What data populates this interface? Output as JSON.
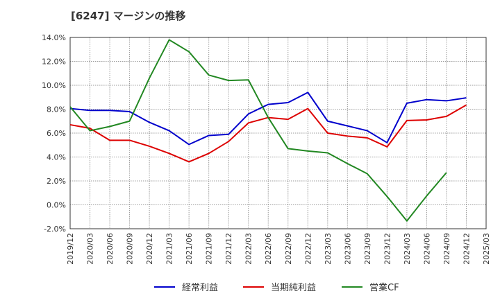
{
  "chart_data": {
    "type": "line",
    "title": "[6247]  マージンの推移",
    "x": [
      "2019/12",
      "2020/03",
      "2020/06",
      "2020/09",
      "2020/12",
      "2021/03",
      "2021/06",
      "2021/09",
      "2021/12",
      "2022/03",
      "2022/06",
      "2022/09",
      "2022/12",
      "2023/03",
      "2023/06",
      "2023/09",
      "2023/12",
      "2024/03",
      "2024/06",
      "2024/09",
      "2024/12",
      "2025/03"
    ],
    "xlabel": "",
    "ylabel": "",
    "ylim": [
      -2,
      14
    ],
    "yticks": [
      "14.0%",
      "12.0%",
      "10.0%",
      "8.0%",
      "6.0%",
      "4.0%",
      "2.0%",
      "0.0%",
      "-2.0%"
    ],
    "ytick_values": [
      14,
      12,
      10,
      8,
      6,
      4,
      2,
      0,
      -2
    ],
    "grid": true,
    "legend_position": "bottom",
    "series": [
      {
        "name": "経常利益",
        "color": "#0000cc",
        "values": [
          8.05,
          7.9,
          7.9,
          7.8,
          6.9,
          6.2,
          5.05,
          5.8,
          5.9,
          7.6,
          8.4,
          8.55,
          9.4,
          7.0,
          6.6,
          6.2,
          5.2,
          8.5,
          8.8,
          8.7,
          8.95,
          null
        ]
      },
      {
        "name": "当期純利益",
        "color": "#dd0000",
        "values": [
          6.7,
          6.4,
          5.4,
          5.4,
          4.9,
          4.3,
          3.6,
          4.3,
          5.3,
          6.85,
          7.3,
          7.15,
          8.05,
          6.0,
          5.75,
          5.6,
          4.85,
          7.05,
          7.1,
          7.4,
          8.35,
          null
        ]
      },
      {
        "name": "営業CF",
        "color": "#228822",
        "values": [
          8.2,
          6.2,
          6.55,
          7.0,
          10.6,
          13.8,
          12.8,
          10.85,
          10.4,
          10.45,
          7.3,
          4.7,
          4.5,
          4.35,
          3.45,
          2.6,
          0.7,
          -1.35,
          0.75,
          2.7,
          null,
          null
        ]
      }
    ]
  }
}
